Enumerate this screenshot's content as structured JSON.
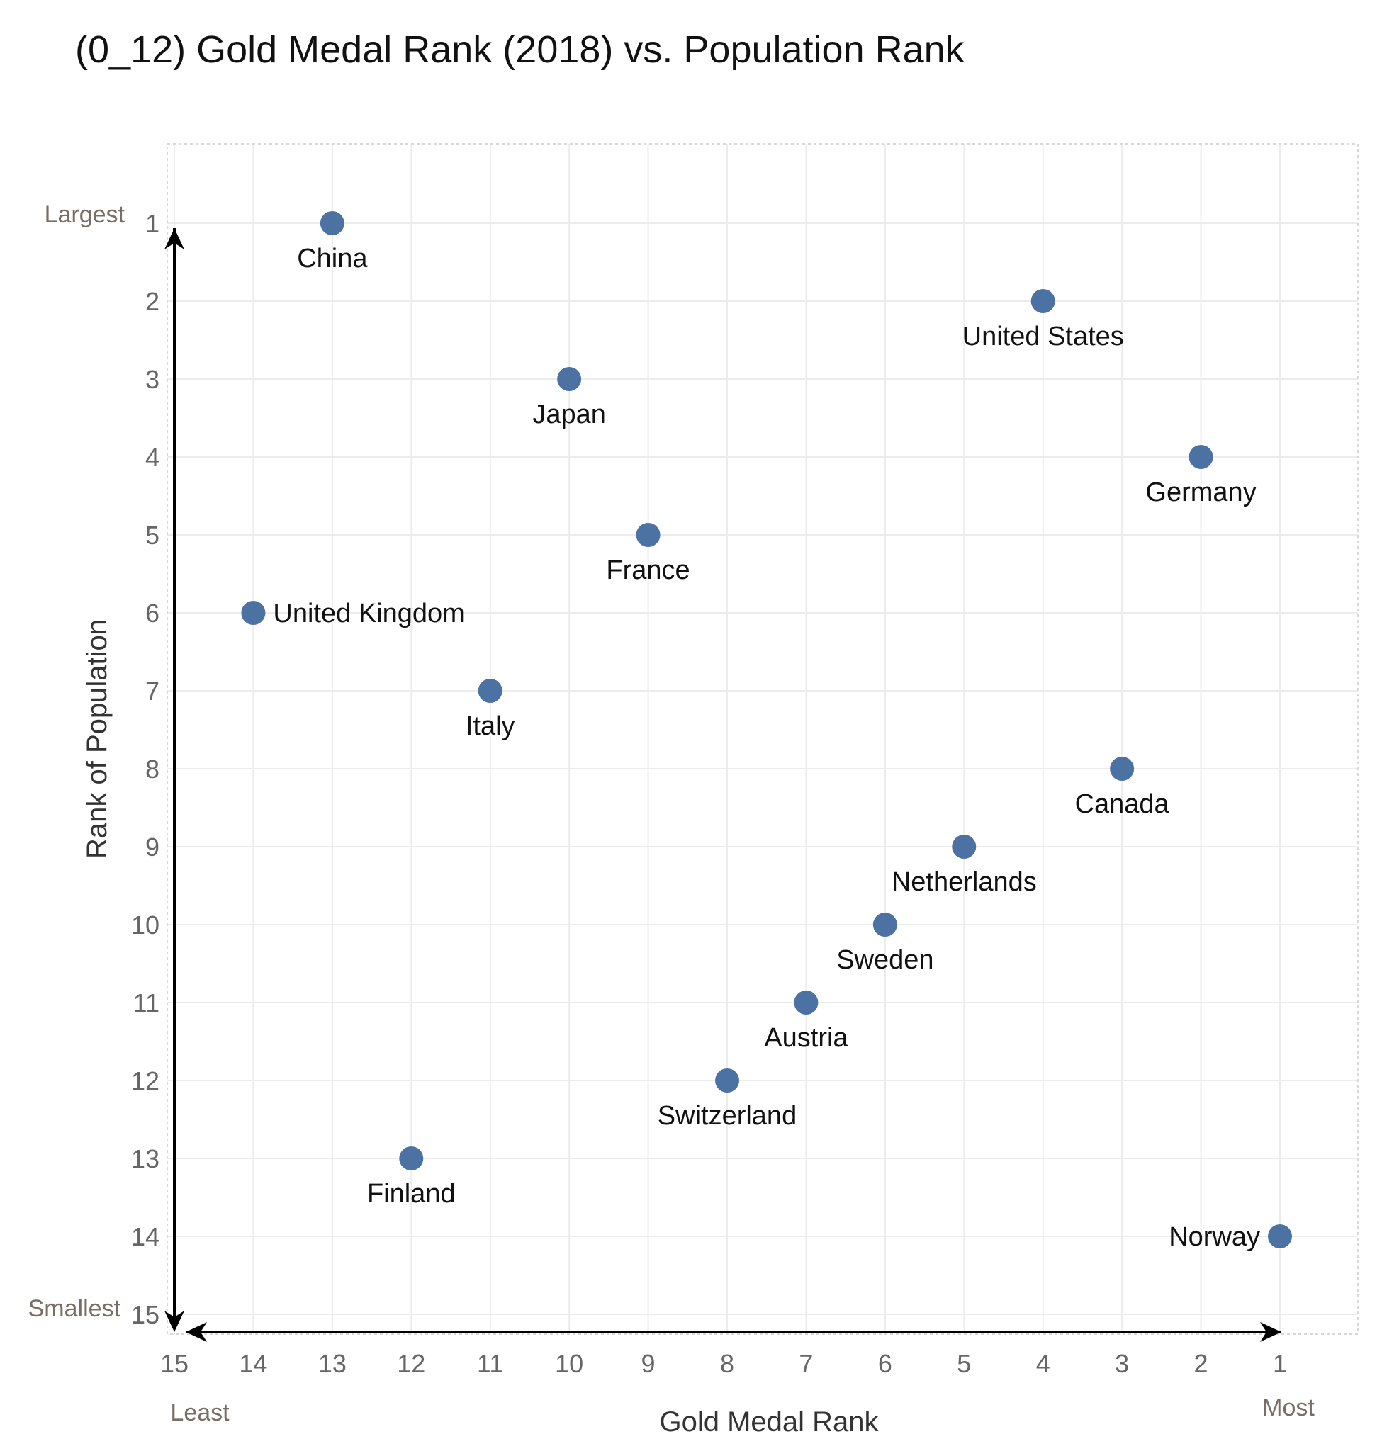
{
  "chart_data": {
    "type": "scatter",
    "title": "(0_12) Gold Medal Rank (2018) vs. Population Rank",
    "xlabel": "Gold Medal Rank",
    "ylabel": "Rank of Population",
    "x_end_labels": {
      "low": "Least",
      "high": "Most"
    },
    "y_end_labels": {
      "top": "Largest",
      "bottom": "Smallest"
    },
    "xlim": [
      15,
      1
    ],
    "ylim": [
      1,
      15
    ],
    "x_reversed": true,
    "y_reversed": true,
    "grid": true,
    "marker_color": "#4c72a4",
    "x_ticks": [
      15,
      14,
      13,
      12,
      11,
      10,
      9,
      8,
      7,
      6,
      5,
      4,
      3,
      2,
      1
    ],
    "y_ticks": [
      1,
      2,
      3,
      4,
      5,
      6,
      7,
      8,
      9,
      10,
      11,
      12,
      13,
      14,
      15
    ],
    "points": [
      {
        "label": "China",
        "x": 13,
        "y": 1,
        "label_pos": "below"
      },
      {
        "label": "United States",
        "x": 4,
        "y": 2,
        "label_pos": "below"
      },
      {
        "label": "Japan",
        "x": 10,
        "y": 3,
        "label_pos": "below"
      },
      {
        "label": "Germany",
        "x": 2,
        "y": 4,
        "label_pos": "below"
      },
      {
        "label": "France",
        "x": 9,
        "y": 5,
        "label_pos": "below"
      },
      {
        "label": "United Kingdom",
        "x": 14,
        "y": 6,
        "label_pos": "right"
      },
      {
        "label": "Italy",
        "x": 11,
        "y": 7,
        "label_pos": "below"
      },
      {
        "label": "Canada",
        "x": 3,
        "y": 8,
        "label_pos": "below"
      },
      {
        "label": "Netherlands",
        "x": 5,
        "y": 9,
        "label_pos": "below"
      },
      {
        "label": "Sweden",
        "x": 6,
        "y": 10,
        "label_pos": "below"
      },
      {
        "label": "Austria",
        "x": 7,
        "y": 11,
        "label_pos": "below"
      },
      {
        "label": "Switzerland",
        "x": 8,
        "y": 12,
        "label_pos": "below"
      },
      {
        "label": "Finland",
        "x": 12,
        "y": 13,
        "label_pos": "below"
      },
      {
        "label": "Norway",
        "x": 1,
        "y": 14,
        "label_pos": "left"
      }
    ]
  }
}
